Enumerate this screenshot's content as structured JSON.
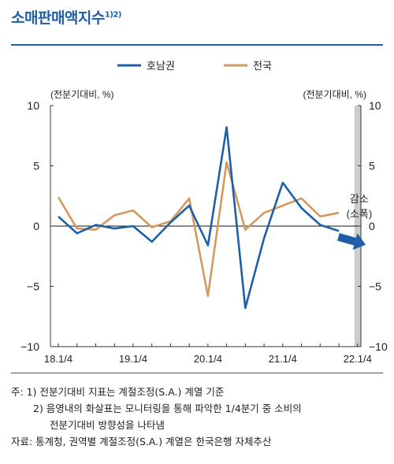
{
  "title": "소매판매액지수",
  "title_sup": "1)2)",
  "chart_data": {
    "type": "line",
    "x_tick_labels": [
      "18.1/4",
      "19.1/4",
      "20.1/4",
      "21.1/4",
      "22.1/4"
    ],
    "x": [
      "18.1",
      "18.2",
      "18.3",
      "18.4",
      "19.1",
      "19.2",
      "19.3",
      "19.4",
      "20.1",
      "20.2",
      "20.3",
      "20.4",
      "21.1",
      "21.2",
      "21.3",
      "21.4",
      "22.1"
    ],
    "series": [
      {
        "name": "호남권",
        "color": "#1f5fa8",
        "values": [
          0.8,
          -0.6,
          0.1,
          -0.2,
          0.0,
          -1.3,
          0.3,
          1.7,
          -1.6,
          8.2,
          -6.8,
          -1.0,
          3.6,
          1.5,
          0.1,
          -0.4,
          null
        ]
      },
      {
        "name": "전국",
        "color": "#d29a5f",
        "values": [
          2.4,
          -0.2,
          -0.3,
          0.9,
          1.3,
          -0.1,
          0.4,
          2.3,
          -5.8,
          5.3,
          -0.3,
          1.1,
          1.7,
          2.3,
          0.8,
          1.1,
          null
        ]
      }
    ],
    "ylim": [
      -10,
      10
    ],
    "y_ticks": [
      10,
      5,
      0,
      -5,
      -10
    ],
    "y_tick_labels": [
      "10",
      "5",
      "0",
      "−5",
      "−10"
    ],
    "left_axis_unit": "(전분기대비, %)",
    "right_axis_unit": "(전분기대비, %)",
    "shaded_region_annotation": [
      "감소",
      "(소폭)"
    ],
    "legend_position": "top-center",
    "colors": {
      "shade": "#cccccc",
      "arrow": "#1f5fa8"
    }
  },
  "notes": {
    "line1": "주: 1) 전분기대비 지표는 계절조정(S.A.) 계열 기준",
    "line2": "2) 음영내의 화살표는 모니터링을 통해 파악한 1/4분기 중 소비의",
    "line3": "전분기대비 방향성을 나타냄",
    "line4": "자료: 통계청, 권역별 계절조정(S.A.) 계열은 한국은행 자체추산"
  }
}
